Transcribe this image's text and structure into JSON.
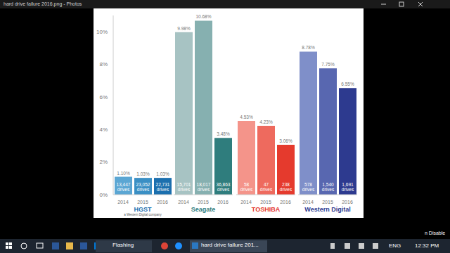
{
  "window": {
    "title": "hard drive failure 2016.png - Photos"
  },
  "chart_data": {
    "type": "bar",
    "ylim": [
      0,
      11
    ],
    "yticks": [
      {
        "value": 0,
        "label": "0%"
      },
      {
        "value": 2,
        "label": "2%"
      },
      {
        "value": 4,
        "label": "4%"
      },
      {
        "value": 6,
        "label": "6%"
      },
      {
        "value": 8,
        "label": "8%"
      },
      {
        "value": 10,
        "label": "10%"
      }
    ],
    "grid": false,
    "data_labels": true,
    "groups": [
      {
        "name": "HGST",
        "logo_note": "a Western Digital company",
        "categories": [
          "2014",
          "2015",
          "2016"
        ],
        "values": [
          1.1,
          1.03,
          1.03
        ],
        "value_labels": [
          "1.10%",
          "1.03%",
          "1.03%"
        ],
        "colors": [
          "#5ba6d3",
          "#3a8fc4",
          "#1b6fae"
        ],
        "drives": [
          13447,
          23052,
          22731
        ],
        "drive_labels": [
          "13,447 drives",
          "23,052 drives",
          "22,731 drives"
        ]
      },
      {
        "name": "Seagate",
        "categories": [
          "2014",
          "2015",
          "2016"
        ],
        "values": [
          9.98,
          10.68,
          3.48
        ],
        "value_labels": [
          "9.98%",
          "10.68%",
          "3.48%"
        ],
        "colors": [
          "#a7c3c3",
          "#86b0b0",
          "#2f7d7d"
        ],
        "drives": [
          15701,
          18017,
          36863
        ],
        "drive_labels": [
          "15,701 drives",
          "18,017 drives",
          "36,863 drives"
        ]
      },
      {
        "name": "TOSHIBA",
        "categories": [
          "2014",
          "2015",
          "2016"
        ],
        "values": [
          4.53,
          4.23,
          3.06
        ],
        "value_labels": [
          "4.53%",
          "4.23%",
          "3.06%"
        ],
        "colors": [
          "#f4948a",
          "#ee6a5e",
          "#e53a2d"
        ],
        "drives": [
          58,
          47,
          238
        ],
        "drive_labels": [
          "58 drives",
          "47 drives",
          "238 drives"
        ]
      },
      {
        "name": "Western Digital",
        "categories": [
          "2014",
          "2015",
          "2016"
        ],
        "values": [
          8.78,
          7.75,
          6.55
        ],
        "value_labels": [
          "8.78%",
          "7.75%",
          "6.55%"
        ],
        "colors": [
          "#7f8fc9",
          "#5867b0",
          "#2d3a8f"
        ],
        "drives": [
          578,
          1540,
          1691
        ],
        "drive_labels": [
          "578 drives",
          "1,540 drives",
          "1,691 drives"
        ]
      }
    ]
  },
  "overlay_text": "n Disable",
  "taskbar": {
    "apps": [
      "Flashing",
      "hard drive failure 201..."
    ],
    "language": "ENG",
    "time": "12:32 PM"
  }
}
